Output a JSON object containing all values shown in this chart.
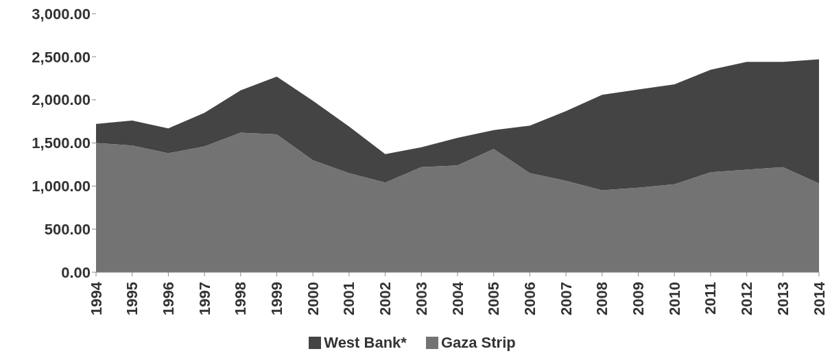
{
  "chart_data": {
    "type": "area",
    "stacked": true,
    "categories": [
      "1994",
      "1995",
      "1996",
      "1997",
      "1998",
      "1999",
      "2000",
      "2001",
      "2002",
      "2003",
      "2004",
      "2005",
      "2006",
      "2007",
      "2008",
      "2009",
      "2010",
      "2011",
      "2012",
      "2013",
      "2014"
    ],
    "series": [
      {
        "name": "Gaza Strip",
        "color": "#737373",
        "values": [
          1500,
          1470,
          1380,
          1460,
          1620,
          1600,
          1300,
          1150,
          1040,
          1220,
          1240,
          1430,
          1150,
          1060,
          950,
          980,
          1020,
          1160,
          1190,
          1220,
          1030
        ]
      },
      {
        "name": "West Bank*",
        "color": "#444444",
        "values": [
          220,
          290,
          290,
          390,
          490,
          670,
          690,
          540,
          330,
          230,
          320,
          220,
          550,
          810,
          1110,
          1140,
          1160,
          1190,
          1250,
          1220,
          1440
        ]
      }
    ],
    "ylim": [
      0,
      3000
    ],
    "yticks": [
      {
        "value": 0,
        "label": "0.00"
      },
      {
        "value": 500,
        "label": "500.00"
      },
      {
        "value": 1000,
        "label": "1,000.00"
      },
      {
        "value": 1500,
        "label": "1,500.00"
      },
      {
        "value": 2000,
        "label": "2,000.00"
      },
      {
        "value": 2500,
        "label": "2,500.00"
      },
      {
        "value": 3000,
        "label": "3,000.00"
      }
    ],
    "grid": false,
    "legend": "bottom"
  }
}
